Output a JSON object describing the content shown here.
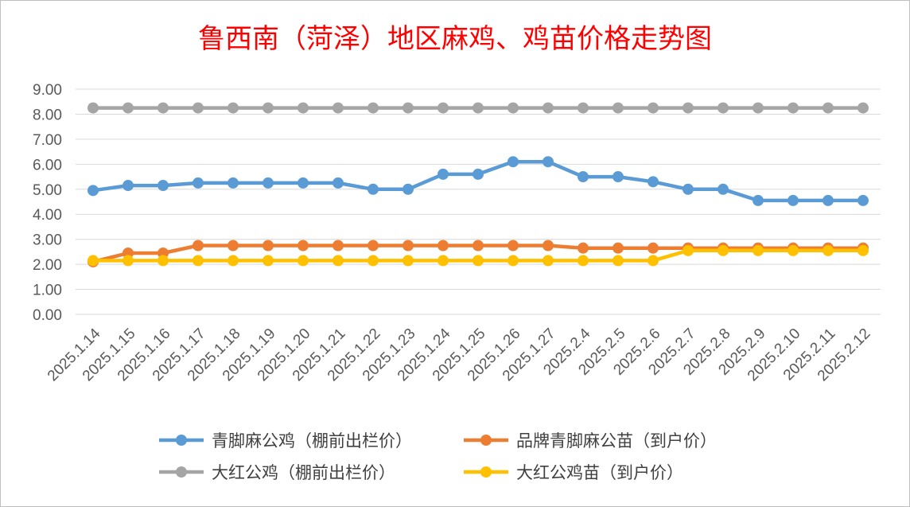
{
  "chart_data": {
    "type": "line",
    "title": "鲁西南（菏泽）地区麻鸡、鸡苗价格走势图",
    "xlabel": "",
    "ylabel": "",
    "ylim": [
      0,
      9
    ],
    "yticks": [
      "0.00",
      "1.00",
      "2.00",
      "3.00",
      "4.00",
      "5.00",
      "6.00",
      "7.00",
      "8.00",
      "9.00"
    ],
    "grid": true,
    "legend_position": "bottom",
    "categories": [
      "2025.1.14",
      "2025.1.15",
      "2025.1.16",
      "2025.1.17",
      "2025.1.18",
      "2025.1.19",
      "2025.1.20",
      "2025.1.21",
      "2025.1.22",
      "2025.1.23",
      "2025.1.24",
      "2025.1.25",
      "2025.1.26",
      "2025.1.27",
      "2025.2.4",
      "2025.2.5",
      "2025.2.6",
      "2025.2.7",
      "2025.2.8",
      "2025.2.9",
      "2025.2.10",
      "2025.2.11",
      "2025.2.12"
    ],
    "series": [
      {
        "name": "青脚麻公鸡（棚前出栏价）",
        "color": "#5b9bd5",
        "values": [
          4.95,
          5.15,
          5.15,
          5.25,
          5.25,
          5.25,
          5.25,
          5.25,
          5.0,
          5.0,
          5.6,
          5.6,
          6.1,
          6.1,
          5.5,
          5.5,
          5.3,
          5.0,
          5.0,
          4.55,
          4.55,
          4.55,
          4.55
        ]
      },
      {
        "name": "品牌青脚麻公苗（到户价）",
        "color": "#ed7d31",
        "values": [
          2.1,
          2.45,
          2.45,
          2.75,
          2.75,
          2.75,
          2.75,
          2.75,
          2.75,
          2.75,
          2.75,
          2.75,
          2.75,
          2.75,
          2.65,
          2.65,
          2.65,
          2.65,
          2.65,
          2.65,
          2.65,
          2.65,
          2.65
        ]
      },
      {
        "name": "大红公鸡（棚前出栏价）",
        "color": "#a5a5a5",
        "values": [
          8.25,
          8.25,
          8.25,
          8.25,
          8.25,
          8.25,
          8.25,
          8.25,
          8.25,
          8.25,
          8.25,
          8.25,
          8.25,
          8.25,
          8.25,
          8.25,
          8.25,
          8.25,
          8.25,
          8.25,
          8.25,
          8.25,
          8.25
        ]
      },
      {
        "name": "大红公鸡苗（到户价）",
        "color": "#ffc000",
        "values": [
          2.15,
          2.15,
          2.15,
          2.15,
          2.15,
          2.15,
          2.15,
          2.15,
          2.15,
          2.15,
          2.15,
          2.15,
          2.15,
          2.15,
          2.15,
          2.15,
          2.15,
          2.55,
          2.55,
          2.55,
          2.55,
          2.55,
          2.55
        ]
      }
    ],
    "colors": {
      "title": "#ff0000",
      "axis_text": "#595959",
      "gridline": "#d9d9d9",
      "legend_text": "#404040"
    }
  }
}
